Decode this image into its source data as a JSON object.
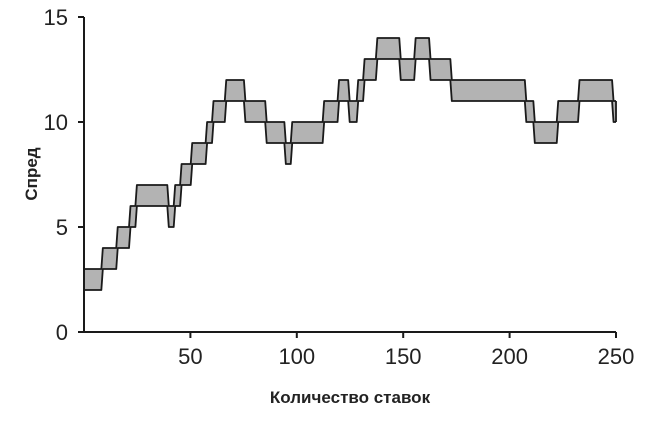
{
  "chart_data": {
    "type": "area",
    "title": "",
    "xlabel": "Количество ставок",
    "ylabel": "Спред",
    "xlim": [
      0,
      250
    ],
    "ylim": [
      0,
      15
    ],
    "x_ticks": [
      50,
      100,
      150,
      200,
      250
    ],
    "y_ticks": [
      0,
      5,
      10,
      15
    ],
    "grid": false,
    "legend": null,
    "fill_color": "#b3b3b3",
    "line_color": "#1a1a1a",
    "segments": [
      {
        "from": 0,
        "to": 8,
        "upper": 3,
        "lower": 2
      },
      {
        "from": 9,
        "to": 15,
        "upper": 4,
        "lower": 3
      },
      {
        "from": 16,
        "to": 21,
        "upper": 5,
        "lower": 4
      },
      {
        "from": 22,
        "to": 24,
        "upper": 6,
        "lower": 5
      },
      {
        "from": 25,
        "to": 39,
        "upper": 7,
        "lower": 6
      },
      {
        "from": 40,
        "to": 42,
        "upper": 6,
        "lower": 5
      },
      {
        "from": 43,
        "to": 45,
        "upper": 7,
        "lower": 6
      },
      {
        "from": 46,
        "to": 50,
        "upper": 8,
        "lower": 7
      },
      {
        "from": 51,
        "to": 57,
        "upper": 9,
        "lower": 8
      },
      {
        "from": 58,
        "to": 60,
        "upper": 10,
        "lower": 9
      },
      {
        "from": 61,
        "to": 66,
        "upper": 11,
        "lower": 10
      },
      {
        "from": 67,
        "to": 75,
        "upper": 12,
        "lower": 11
      },
      {
        "from": 76,
        "to": 85,
        "upper": 11,
        "lower": 10
      },
      {
        "from": 86,
        "to": 94,
        "upper": 10,
        "lower": 9
      },
      {
        "from": 95,
        "to": 97,
        "upper": 9,
        "lower": 8
      },
      {
        "from": 98,
        "to": 112,
        "upper": 10,
        "lower": 9
      },
      {
        "from": 113,
        "to": 119,
        "upper": 11,
        "lower": 10
      },
      {
        "from": 120,
        "to": 124,
        "upper": 12,
        "lower": 11
      },
      {
        "from": 125,
        "to": 128,
        "upper": 11,
        "lower": 10
      },
      {
        "from": 129,
        "to": 131,
        "upper": 12,
        "lower": 11
      },
      {
        "from": 132,
        "to": 137,
        "upper": 13,
        "lower": 12
      },
      {
        "from": 138,
        "to": 148,
        "upper": 14,
        "lower": 13
      },
      {
        "from": 149,
        "to": 155,
        "upper": 13,
        "lower": 12
      },
      {
        "from": 156,
        "to": 162,
        "upper": 14,
        "lower": 13
      },
      {
        "from": 163,
        "to": 172,
        "upper": 13,
        "lower": 12
      },
      {
        "from": 173,
        "to": 207,
        "upper": 12,
        "lower": 11
      },
      {
        "from": 208,
        "to": 211,
        "upper": 11,
        "lower": 10
      },
      {
        "from": 212,
        "to": 222,
        "upper": 10,
        "lower": 9
      },
      {
        "from": 223,
        "to": 232,
        "upper": 11,
        "lower": 10
      },
      {
        "from": 233,
        "to": 248,
        "upper": 12,
        "lower": 11
      },
      {
        "from": 249,
        "to": 250,
        "upper": 11,
        "lower": 10
      }
    ]
  }
}
